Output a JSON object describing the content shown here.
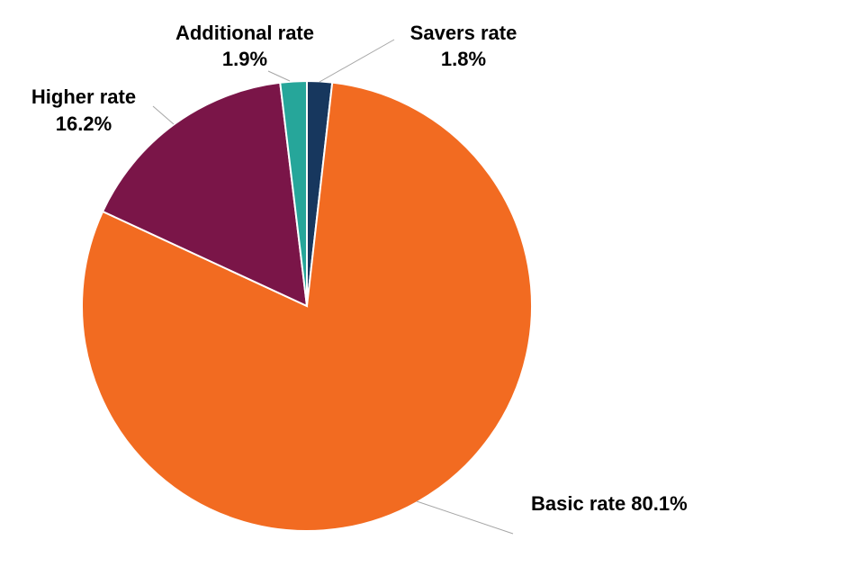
{
  "chart_data": {
    "type": "pie",
    "slices": [
      {
        "name": "Savers rate",
        "value": 1.8,
        "value_label": "1.8%",
        "color": "#17375e"
      },
      {
        "name": "Basic rate",
        "value": 80.1,
        "value_label": "80.1%",
        "color": "#f26b21"
      },
      {
        "name": "Higher rate",
        "value": 16.2,
        "value_label": "16.2%",
        "color": "#7a1548"
      },
      {
        "name": "Additional rate",
        "value": 1.9,
        "value_label": "1.9%",
        "color": "#26a69a"
      }
    ],
    "start_angle": "12 o'clock, clockwise",
    "legend": "none",
    "labels": "outside with leader lines"
  }
}
